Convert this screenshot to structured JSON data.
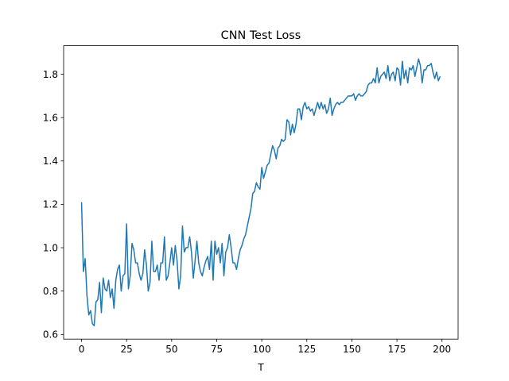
{
  "chart_data": {
    "type": "line",
    "title": "CNN Test Loss",
    "x_label": "T",
    "x": [
      0,
      1,
      2,
      3,
      4,
      5,
      6,
      7,
      8,
      9,
      10,
      11,
      12,
      13,
      14,
      15,
      16,
      17,
      18,
      19,
      20,
      21,
      22,
      23,
      24,
      25,
      26,
      27,
      28,
      29,
      30,
      31,
      32,
      33,
      34,
      35,
      36,
      37,
      38,
      39,
      40,
      41,
      42,
      43,
      44,
      45,
      46,
      47,
      48,
      49,
      50,
      51,
      52,
      53,
      54,
      55,
      56,
      57,
      58,
      59,
      60,
      61,
      62,
      63,
      64,
      65,
      66,
      67,
      68,
      69,
      70,
      71,
      72,
      73,
      74,
      75,
      76,
      77,
      78,
      79,
      80,
      81,
      82,
      83,
      84,
      85,
      86,
      87,
      88,
      89,
      90,
      91,
      92,
      93,
      94,
      95,
      96,
      97,
      98,
      99,
      100,
      101,
      102,
      103,
      104,
      105,
      106,
      107,
      108,
      109,
      110,
      111,
      112,
      113,
      114,
      115,
      116,
      117,
      118,
      119,
      120,
      121,
      122,
      123,
      124,
      125,
      126,
      127,
      128,
      129,
      130,
      131,
      132,
      133,
      134,
      135,
      136,
      137,
      138,
      139,
      140,
      141,
      142,
      143,
      144,
      145,
      146,
      147,
      148,
      149,
      150,
      151,
      152,
      153,
      154,
      155,
      156,
      157,
      158,
      159,
      160,
      161,
      162,
      163,
      164,
      165,
      166,
      167,
      168,
      169,
      170,
      171,
      172,
      173,
      174,
      175,
      176,
      177,
      178,
      179,
      180,
      181,
      182,
      183,
      184,
      185,
      186,
      187,
      188,
      189,
      190,
      191,
      192,
      193,
      194,
      195,
      196,
      197,
      198,
      199
    ],
    "series": [
      {
        "color": "#1f77b4",
        "values": [
          1.21,
          0.89,
          0.95,
          0.78,
          0.69,
          0.71,
          0.65,
          0.64,
          0.75,
          0.76,
          0.84,
          0.7,
          0.86,
          0.81,
          0.8,
          0.85,
          0.77,
          0.81,
          0.72,
          0.85,
          0.9,
          0.92,
          0.8,
          0.87,
          0.88,
          1.11,
          0.81,
          0.87,
          1.02,
          0.99,
          0.93,
          0.93,
          0.88,
          0.85,
          0.88,
          0.99,
          0.92,
          0.8,
          0.84,
          1.03,
          0.89,
          0.89,
          0.92,
          0.85,
          0.93,
          0.93,
          1.05,
          0.85,
          0.87,
          0.93,
          1.0,
          0.92,
          1.01,
          0.94,
          0.81,
          0.87,
          1.1,
          0.98,
          1.0,
          1.0,
          1.05,
          0.98,
          0.86,
          0.94,
          1.03,
          0.93,
          0.89,
          0.87,
          0.91,
          0.94,
          0.96,
          0.9,
          1.03,
          0.85,
          1.03,
          0.97,
          1.0,
          0.93,
          1.02,
          0.87,
          0.98,
          1.0,
          1.06,
          1.0,
          0.93,
          0.93,
          0.9,
          0.95,
          0.99,
          1.01,
          1.04,
          1.06,
          1.1,
          1.14,
          1.18,
          1.25,
          1.26,
          1.3,
          1.28,
          1.27,
          1.37,
          1.32,
          1.35,
          1.38,
          1.39,
          1.43,
          1.47,
          1.45,
          1.41,
          1.46,
          1.47,
          1.5,
          1.49,
          1.5,
          1.59,
          1.58,
          1.52,
          1.57,
          1.53,
          1.57,
          1.64,
          1.64,
          1.59,
          1.65,
          1.67,
          1.64,
          1.65,
          1.63,
          1.64,
          1.61,
          1.64,
          1.67,
          1.64,
          1.67,
          1.64,
          1.66,
          1.62,
          1.64,
          1.69,
          1.61,
          1.64,
          1.66,
          1.67,
          1.66,
          1.67,
          1.67,
          1.68,
          1.69,
          1.7,
          1.7,
          1.7,
          1.71,
          1.68,
          1.7,
          1.71,
          1.7,
          1.7,
          1.71,
          1.72,
          1.75,
          1.76,
          1.76,
          1.78,
          1.76,
          1.83,
          1.76,
          1.79,
          1.8,
          1.81,
          1.78,
          1.84,
          1.77,
          1.8,
          1.81,
          1.77,
          1.83,
          1.82,
          1.75,
          1.86,
          1.78,
          1.82,
          1.76,
          1.83,
          1.82,
          1.84,
          1.79,
          1.83,
          1.87,
          1.84,
          1.76,
          1.82,
          1.82,
          1.84,
          1.84,
          1.85,
          1.81,
          1.78,
          1.81,
          1.77,
          1.79
        ]
      }
    ],
    "xlim": [
      -9.95,
      208.95
    ],
    "ylim": [
      0.5785,
      1.9315
    ],
    "xticks": [
      0,
      25,
      50,
      75,
      100,
      125,
      150,
      175,
      200
    ],
    "yticks": [
      0.6,
      0.8,
      {
        "value": 1,
        "label": "1.0"
      },
      1.2,
      1.4,
      1.6,
      1.8
    ],
    "grid": false
  }
}
